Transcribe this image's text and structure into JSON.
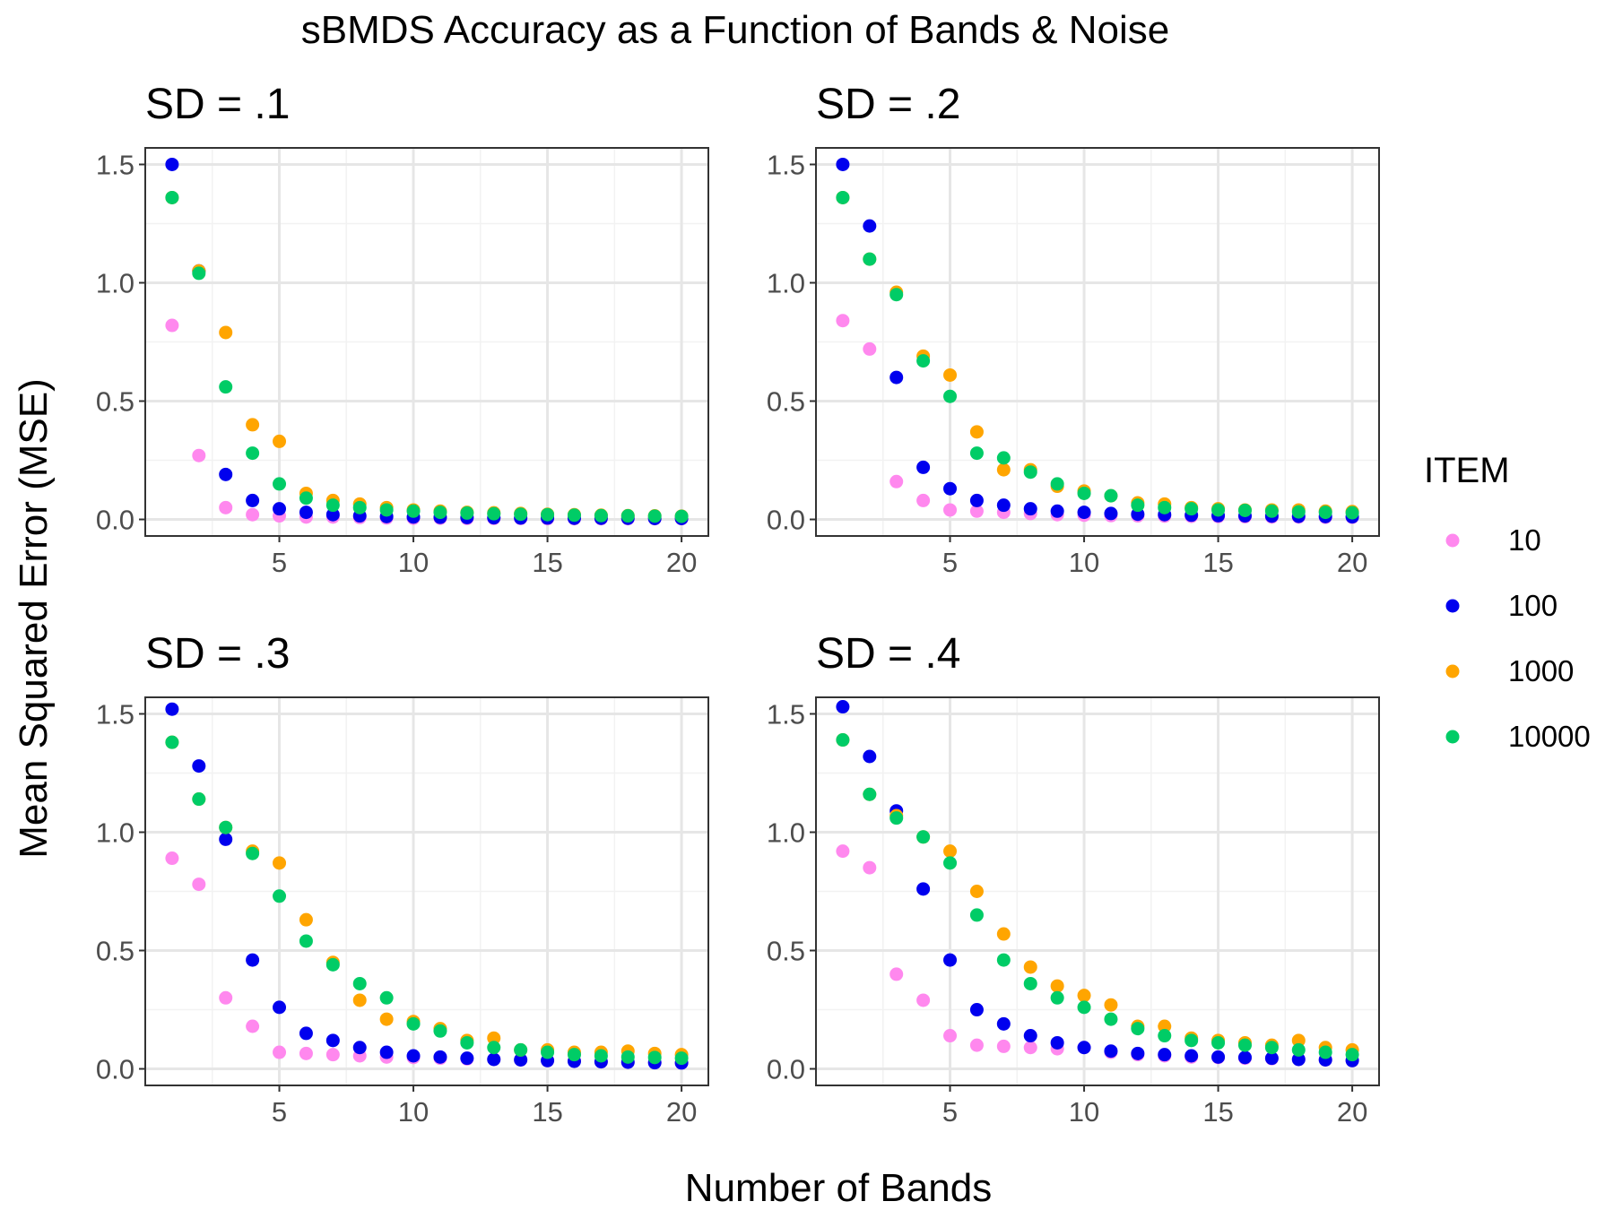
{
  "chart_data": {
    "type": "scatter",
    "title": "sBMDS Accuracy as a Function of Bands & Noise",
    "xlabel": "Number of Bands",
    "ylabel": "Mean Squared Error (MSE)",
    "xlim": [
      0,
      21
    ],
    "ylim": [
      -0.07,
      1.57
    ],
    "x_ticks": [
      5,
      10,
      15,
      20
    ],
    "x_tick_labels": [
      "5",
      "10",
      "15",
      "20"
    ],
    "y_ticks": [
      0,
      0.5,
      1,
      1.5
    ],
    "y_tick_labels": [
      "0.0",
      "0.5",
      "1.0",
      "1.5"
    ],
    "grid": true,
    "legend": {
      "title": "ITEM",
      "placement": "right",
      "entries": [
        {
          "name": "10",
          "color": "#ff88ee"
        },
        {
          "name": "100",
          "color": "#0000ee"
        },
        {
          "name": "1000",
          "color": "#ffa500"
        },
        {
          "name": "10000",
          "color": "#00cc66"
        }
      ]
    },
    "x": [
      1,
      2,
      3,
      4,
      5,
      6,
      7,
      8,
      9,
      10,
      11,
      12,
      13,
      14,
      15,
      16,
      17,
      18,
      19,
      20
    ],
    "panels": [
      {
        "title": "SD = .1",
        "series": [
          {
            "name": "10",
            "color": "#ff88ee",
            "values": [
              0.82,
              0.27,
              0.05,
              0.02,
              0.015,
              0.01,
              0.01,
              0.008,
              0.006,
              0.005,
              0.005,
              0.004,
              0.004,
              0.004,
              0.003,
              0.003,
              0.003,
              0.003,
              0.003,
              0.003
            ]
          },
          {
            "name": "100",
            "color": "#0000ee",
            "values": [
              1.5,
              1.05,
              0.19,
              0.08,
              0.045,
              0.03,
              0.02,
              0.015,
              0.012,
              0.01,
              0.009,
              0.008,
              0.007,
              0.006,
              0.006,
              0.005,
              0.005,
              0.005,
              0.004,
              0.004
            ]
          },
          {
            "name": "1000",
            "color": "#ffa500",
            "values": [
              1.36,
              1.05,
              0.79,
              0.4,
              0.33,
              0.11,
              0.08,
              0.065,
              0.05,
              0.04,
              0.035,
              0.03,
              0.028,
              0.025,
              0.022,
              0.02,
              0.018,
              0.016,
              0.015,
              0.014
            ]
          },
          {
            "name": "10000",
            "color": "#00cc66",
            "values": [
              1.36,
              1.04,
              0.56,
              0.28,
              0.15,
              0.09,
              0.06,
              0.05,
              0.04,
              0.035,
              0.03,
              0.027,
              0.024,
              0.022,
              0.02,
              0.018,
              0.016,
              0.015,
              0.014,
              0.013
            ]
          }
        ]
      },
      {
        "title": "SD = .2",
        "series": [
          {
            "name": "10",
            "color": "#ff88ee",
            "values": [
              0.84,
              0.72,
              0.16,
              0.08,
              0.04,
              0.035,
              0.03,
              0.025,
              0.02,
              0.018,
              0.016,
              0.015,
              0.014,
              0.013,
              0.012,
              0.011,
              0.01,
              0.01,
              0.009,
              0.009
            ]
          },
          {
            "name": "100",
            "color": "#0000ee",
            "values": [
              1.5,
              1.24,
              0.6,
              0.22,
              0.13,
              0.08,
              0.06,
              0.045,
              0.035,
              0.03,
              0.025,
              0.022,
              0.02,
              0.018,
              0.016,
              0.015,
              0.014,
              0.013,
              0.012,
              0.011
            ]
          },
          {
            "name": "1000",
            "color": "#ffa500",
            "values": [
              1.36,
              1.1,
              0.96,
              0.69,
              0.61,
              0.37,
              0.21,
              0.21,
              0.14,
              0.12,
              0.1,
              0.07,
              0.065,
              0.05,
              0.045,
              0.04,
              0.04,
              0.04,
              0.035,
              0.033
            ]
          },
          {
            "name": "10000",
            "color": "#00cc66",
            "values": [
              1.36,
              1.1,
              0.95,
              0.67,
              0.52,
              0.28,
              0.26,
              0.2,
              0.15,
              0.11,
              0.1,
              0.06,
              0.05,
              0.045,
              0.04,
              0.038,
              0.035,
              0.032,
              0.03,
              0.028
            ]
          }
        ]
      },
      {
        "title": "SD = .3",
        "series": [
          {
            "name": "10",
            "color": "#ff88ee",
            "values": [
              0.89,
              0.78,
              0.3,
              0.18,
              0.07,
              0.065,
              0.06,
              0.055,
              0.05,
              0.048,
              0.045,
              0.042,
              0.04,
              0.038,
              0.035,
              0.033,
              0.03,
              0.028,
              0.027,
              0.025
            ]
          },
          {
            "name": "100",
            "color": "#0000ee",
            "values": [
              1.52,
              1.28,
              0.97,
              0.46,
              0.26,
              0.15,
              0.12,
              0.09,
              0.07,
              0.055,
              0.05,
              0.045,
              0.04,
              0.038,
              0.035,
              0.032,
              0.03,
              0.028,
              0.026,
              0.025
            ]
          },
          {
            "name": "1000",
            "color": "#ffa500",
            "values": [
              1.38,
              1.14,
              1.02,
              0.92,
              0.87,
              0.63,
              0.45,
              0.29,
              0.21,
              0.2,
              0.17,
              0.12,
              0.13,
              0.08,
              0.08,
              0.07,
              0.07,
              0.075,
              0.065,
              0.06
            ]
          },
          {
            "name": "10000",
            "color": "#00cc66",
            "values": [
              1.38,
              1.14,
              1.02,
              0.91,
              0.73,
              0.54,
              0.44,
              0.36,
              0.3,
              0.19,
              0.16,
              0.11,
              0.09,
              0.08,
              0.07,
              0.06,
              0.055,
              0.05,
              0.048,
              0.045
            ]
          }
        ]
      },
      {
        "title": "SD = .4",
        "series": [
          {
            "name": "10",
            "color": "#ff88ee",
            "values": [
              0.92,
              0.85,
              0.4,
              0.29,
              0.14,
              0.1,
              0.095,
              0.09,
              0.085,
              0.09,
              0.07,
              0.06,
              0.055,
              0.05,
              0.048,
              0.045,
              0.043,
              0.04,
              0.038,
              0.035
            ]
          },
          {
            "name": "100",
            "color": "#0000ee",
            "values": [
              1.53,
              1.32,
              1.09,
              0.76,
              0.46,
              0.25,
              0.19,
              0.14,
              0.11,
              0.09,
              0.075,
              0.065,
              0.06,
              0.055,
              0.05,
              0.048,
              0.045,
              0.04,
              0.038,
              0.035
            ]
          },
          {
            "name": "1000",
            "color": "#ffa500",
            "values": [
              1.39,
              1.16,
              1.07,
              0.98,
              0.92,
              0.75,
              0.57,
              0.43,
              0.35,
              0.31,
              0.27,
              0.18,
              0.18,
              0.13,
              0.12,
              0.11,
              0.1,
              0.12,
              0.09,
              0.08
            ]
          },
          {
            "name": "10000",
            "color": "#00cc66",
            "values": [
              1.39,
              1.16,
              1.06,
              0.98,
              0.87,
              0.65,
              0.46,
              0.36,
              0.3,
              0.26,
              0.21,
              0.17,
              0.14,
              0.12,
              0.11,
              0.1,
              0.09,
              0.08,
              0.07,
              0.06
            ]
          }
        ]
      }
    ]
  }
}
